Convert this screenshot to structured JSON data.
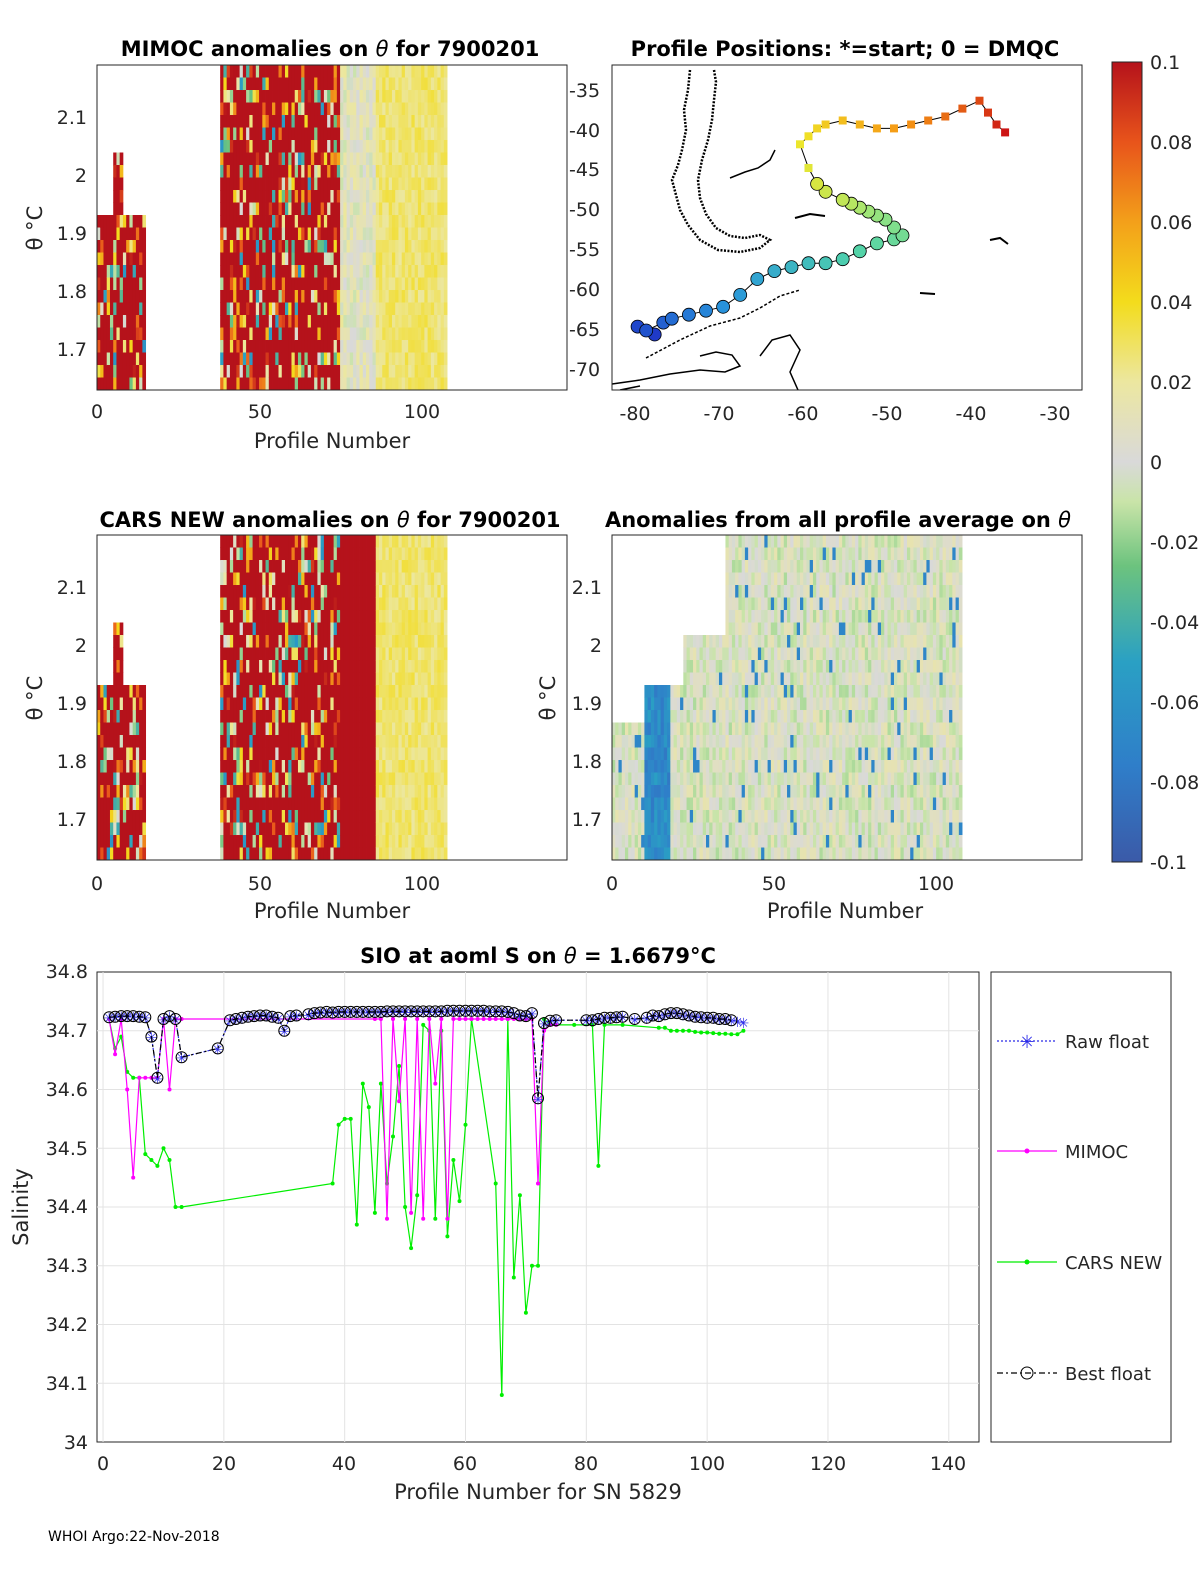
{
  "footer": "WHOI Argo:22-Nov-2018",
  "colorbar": {
    "ticks": [
      "0.1",
      "0.08",
      "0.06",
      "0.04",
      "0.02",
      "0",
      "-0.02",
      "-0.04",
      "-0.06",
      "-0.08",
      "-0.1"
    ],
    "range": [
      -0.1,
      0.1
    ]
  },
  "chart_data": [
    {
      "type": "heatmap",
      "title_pre": "MIMOC anomalies on",
      "title_post": " for 7900201",
      "xlabel": "Profile Number",
      "ylabel": "θ °C",
      "xticks": [
        "0",
        "50",
        "100"
      ],
      "yticks": [
        "1.7",
        "1.8",
        "1.9",
        "2",
        "2.1"
      ],
      "xlim": [
        0,
        145
      ],
      "ylim": [
        1.63,
        2.18
      ],
      "filled_ranges": [
        [
          0,
          15
        ],
        [
          38,
          108
        ]
      ]
    },
    {
      "type": "scatter",
      "title": "Profile Positions: *=start; 0 = DMQC",
      "xticks": [
        "-80",
        "-70",
        "-60",
        "-50",
        "-40",
        "-30"
      ],
      "yticks": [
        "-35",
        "-40",
        "-45",
        "-50",
        "-55",
        "-60",
        "-65",
        "-70"
      ],
      "xlim": [
        -82,
        -27
      ],
      "ylim": [
        -73,
        -32
      ],
      "start_marker": "*",
      "track_lon": [
        -77,
        -79,
        -78,
        -76,
        -75,
        -73,
        -71,
        -69,
        -67,
        -65,
        -63,
        -61,
        -59,
        -57,
        -55,
        -53,
        -51,
        -49,
        -48,
        -49,
        -50,
        -51,
        -52,
        -53,
        -54,
        -55,
        -57,
        -58,
        -59,
        -60,
        -59,
        -58,
        -57,
        -55,
        -53,
        -51,
        -49,
        -47,
        -45,
        -43,
        -41,
        -39,
        -38,
        -37,
        -36
      ],
      "track_lat": [
        -66,
        -65,
        -65.5,
        -64.5,
        -64,
        -63.5,
        -63,
        -62.5,
        -61,
        -59,
        -58,
        -57.5,
        -57,
        -57,
        -56.5,
        -55.5,
        -54.5,
        -54,
        -53.5,
        -52.5,
        -51.5,
        -51,
        -50.5,
        -50,
        -49.5,
        -49,
        -48,
        -47,
        -45,
        -42,
        -41,
        -40,
        -39.5,
        -39,
        -39.5,
        -40,
        -40,
        -39.5,
        -39,
        -38.5,
        -37.5,
        -36.5,
        -38,
        -39.5,
        -40.5
      ]
    },
    {
      "type": "heatmap",
      "title_pre": "CARS NEW anomalies on",
      "title_post": " for 7900201",
      "xlabel": "Profile Number",
      "ylabel": "θ °C",
      "xticks": [
        "0",
        "50",
        "100"
      ],
      "yticks": [
        "1.7",
        "1.8",
        "1.9",
        "2",
        "2.1"
      ],
      "xlim": [
        0,
        145
      ],
      "ylim": [
        1.63,
        2.18
      ],
      "filled_ranges": [
        [
          0,
          15
        ],
        [
          38,
          108
        ]
      ]
    },
    {
      "type": "heatmap",
      "title_pre": "Anomalies from all profile average on",
      "title_post": "",
      "xlabel": "Profile Number",
      "ylabel": "θ °C",
      "xticks": [
        "0",
        "50",
        "100"
      ],
      "yticks": [
        "1.7",
        "1.8",
        "1.9",
        "2",
        "2.1"
      ],
      "xlim": [
        0,
        145
      ],
      "ylim": [
        1.63,
        2.18
      ],
      "filled_ranges": [
        [
          0,
          108
        ]
      ]
    },
    {
      "type": "line",
      "title_pre": "SIO at aoml S on",
      "title_post": " = 1.6679°C",
      "xlabel": "Profile Number for SN 5829",
      "ylabel": "Salinity",
      "xlim": [
        -1,
        145
      ],
      "ylim": [
        34.0,
        34.8
      ],
      "xticks": [
        "0",
        "20",
        "40",
        "60",
        "80",
        "100",
        "120",
        "140"
      ],
      "yticks": [
        "34",
        "34.1",
        "34.2",
        "34.3",
        "34.4",
        "34.5",
        "34.6",
        "34.7",
        "34.8"
      ],
      "legend_position": "outside-right",
      "series": [
        {
          "name": "Raw float",
          "color": "#2a2ae8",
          "x": [
            1,
            2,
            3,
            4,
            5,
            6,
            7,
            8,
            9,
            10,
            11,
            12,
            13,
            19,
            21,
            22,
            23,
            24,
            25,
            26,
            27,
            28,
            29,
            30,
            31,
            32,
            34,
            35,
            36,
            37,
            38,
            39,
            40,
            41,
            42,
            43,
            44,
            45,
            46,
            47,
            48,
            49,
            50,
            51,
            52,
            53,
            54,
            55,
            56,
            57,
            58,
            59,
            60,
            61,
            62,
            63,
            64,
            65,
            66,
            67,
            68,
            69,
            70,
            71,
            72,
            73,
            74,
            75,
            80,
            81,
            82,
            83,
            84,
            85,
            86,
            88,
            90,
            91,
            92,
            93,
            94,
            95,
            96,
            97,
            98,
            99,
            100,
            101,
            102,
            103,
            104,
            105,
            106
          ],
          "y": [
            34.723,
            34.724,
            34.725,
            34.725,
            34.725,
            34.724,
            34.723,
            34.69,
            34.62,
            34.72,
            34.725,
            34.72,
            34.655,
            34.67,
            34.718,
            34.72,
            34.722,
            34.724,
            34.725,
            34.726,
            34.726,
            34.724,
            34.722,
            34.7,
            34.725,
            34.726,
            34.728,
            34.73,
            34.731,
            34.732,
            34.731,
            34.732,
            34.732,
            34.732,
            34.732,
            34.732,
            34.732,
            34.732,
            34.732,
            34.733,
            34.733,
            34.733,
            34.733,
            34.733,
            34.733,
            34.733,
            34.733,
            34.733,
            34.733,
            34.734,
            34.734,
            34.734,
            34.734,
            34.734,
            34.734,
            34.734,
            34.733,
            34.733,
            34.733,
            34.732,
            34.73,
            34.726,
            34.725,
            34.73,
            34.585,
            34.713,
            34.717,
            34.718,
            34.718,
            34.718,
            34.72,
            34.722,
            34.722,
            34.723,
            34.724,
            34.72,
            34.722,
            34.726,
            34.725,
            34.728,
            34.73,
            34.73,
            34.728,
            34.726,
            34.724,
            34.723,
            34.722,
            34.722,
            34.72,
            34.72,
            34.718,
            34.717,
            34.715
          ]
        },
        {
          "name": "MIMOC",
          "color": "#ff00ff",
          "x": [
            1,
            2,
            3,
            4,
            5,
            6,
            7,
            8,
            9,
            10,
            11,
            12,
            13,
            45,
            46,
            47,
            48,
            49,
            50,
            51,
            52,
            53,
            54,
            55,
            56,
            57,
            58,
            59,
            60,
            61,
            62,
            63,
            64,
            65,
            66,
            67,
            68,
            69,
            70,
            71,
            72,
            73,
            74,
            75
          ],
          "y": [
            34.72,
            34.66,
            34.72,
            34.6,
            34.45,
            34.62,
            34.62,
            34.62,
            34.62,
            34.72,
            34.6,
            34.72,
            34.72,
            34.72,
            34.72,
            34.38,
            34.72,
            34.58,
            34.72,
            34.39,
            34.72,
            34.38,
            34.72,
            34.61,
            34.72,
            34.38,
            34.72,
            34.72,
            34.72,
            34.72,
            34.72,
            34.72,
            34.72,
            34.72,
            34.72,
            34.72,
            34.72,
            34.72,
            34.72,
            34.72,
            34.44,
            34.7,
            34.71,
            34.71
          ]
        },
        {
          "name": "CARS NEW",
          "color": "#00ee00",
          "x": [
            1,
            2,
            3,
            4,
            5,
            6,
            7,
            8,
            9,
            10,
            11,
            12,
            13,
            38,
            39,
            40,
            41,
            42,
            43,
            44,
            45,
            46,
            47,
            48,
            49,
            50,
            51,
            52,
            53,
            54,
            55,
            56,
            57,
            58,
            59,
            60,
            61,
            65,
            66,
            67,
            68,
            69,
            70,
            71,
            72,
            73,
            74,
            75,
            78,
            81,
            82,
            83,
            86,
            92,
            93,
            94,
            95,
            96,
            97,
            98,
            99,
            100,
            101,
            102,
            103,
            104,
            105,
            106
          ],
          "y": [
            34.72,
            34.67,
            34.69,
            34.63,
            34.62,
            34.62,
            34.49,
            34.48,
            34.47,
            34.5,
            34.48,
            34.4,
            34.4,
            34.44,
            34.54,
            34.55,
            34.55,
            34.37,
            34.61,
            34.57,
            34.39,
            34.61,
            34.44,
            34.52,
            34.64,
            34.4,
            34.33,
            34.42,
            34.71,
            34.7,
            34.38,
            34.7,
            34.35,
            34.48,
            34.41,
            34.54,
            34.72,
            34.44,
            34.08,
            34.72,
            34.28,
            34.42,
            34.22,
            34.3,
            34.3,
            34.72,
            34.71,
            34.71,
            34.71,
            34.71,
            34.47,
            34.71,
            34.71,
            34.705,
            34.705,
            34.7,
            34.7,
            34.7,
            34.7,
            34.698,
            34.697,
            34.697,
            34.696,
            34.695,
            34.695,
            34.694,
            34.694,
            34.7
          ]
        },
        {
          "name": "Best float",
          "color": "#000000",
          "x": [
            1,
            2,
            3,
            4,
            5,
            6,
            7,
            8,
            9,
            10,
            11,
            12,
            13,
            19,
            21,
            22,
            23,
            24,
            25,
            26,
            27,
            28,
            29,
            30,
            31,
            32,
            34,
            35,
            36,
            37,
            38,
            39,
            40,
            41,
            42,
            43,
            44,
            45,
            46,
            47,
            48,
            49,
            50,
            51,
            52,
            53,
            54,
            55,
            56,
            57,
            58,
            59,
            60,
            61,
            62,
            63,
            64,
            65,
            66,
            67,
            68,
            69,
            70,
            71,
            72,
            73,
            74,
            75,
            80,
            81,
            82,
            83,
            84,
            85,
            86,
            88,
            90,
            91,
            92,
            93,
            94,
            95,
            96,
            97,
            98,
            99,
            100,
            101,
            102,
            103,
            104
          ],
          "y": [
            34.723,
            34.724,
            34.725,
            34.725,
            34.725,
            34.724,
            34.723,
            34.69,
            34.62,
            34.72,
            34.725,
            34.72,
            34.655,
            34.67,
            34.718,
            34.72,
            34.722,
            34.724,
            34.725,
            34.726,
            34.726,
            34.724,
            34.722,
            34.7,
            34.725,
            34.726,
            34.728,
            34.73,
            34.731,
            34.732,
            34.731,
            34.732,
            34.732,
            34.732,
            34.732,
            34.732,
            34.732,
            34.732,
            34.732,
            34.733,
            34.733,
            34.733,
            34.733,
            34.733,
            34.733,
            34.733,
            34.733,
            34.733,
            34.733,
            34.734,
            34.734,
            34.734,
            34.734,
            34.734,
            34.734,
            34.734,
            34.733,
            34.733,
            34.733,
            34.732,
            34.73,
            34.726,
            34.725,
            34.73,
            34.585,
            34.713,
            34.717,
            34.718,
            34.718,
            34.718,
            34.72,
            34.722,
            34.722,
            34.723,
            34.724,
            34.72,
            34.722,
            34.726,
            34.725,
            34.728,
            34.73,
            34.73,
            34.728,
            34.726,
            34.724,
            34.723,
            34.722,
            34.722,
            34.72,
            34.72,
            34.718
          ]
        }
      ]
    }
  ]
}
